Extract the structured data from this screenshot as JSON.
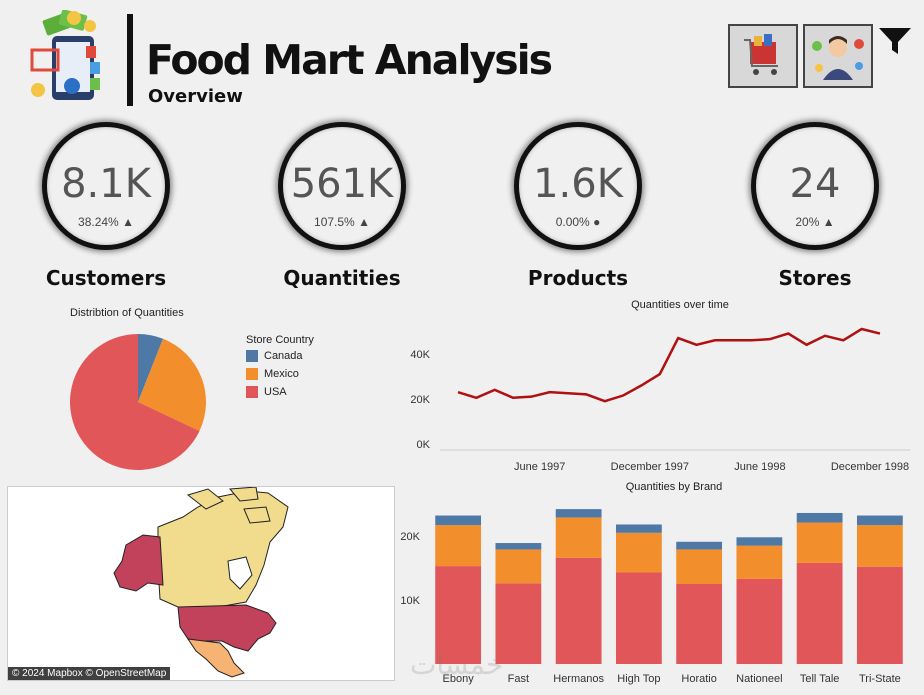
{
  "header": {
    "title": "Food Mart Analysis",
    "subtitle": "Overview"
  },
  "kpis": [
    {
      "value": "8.1K",
      "delta": "38.24%",
      "trend": "▲",
      "label": "Customers"
    },
    {
      "value": "561K",
      "delta": "107.5%",
      "trend": "▲",
      "label": "Quantities"
    },
    {
      "value": "1.6K",
      "delta": "0.00%",
      "trend": "●",
      "label": "Products"
    },
    {
      "value": "24",
      "delta": "20%",
      "trend": "▲",
      "label": "Stores"
    }
  ],
  "colors": {
    "canada": "#4e79a7",
    "mexico": "#f28e2b",
    "usa": "#e15759",
    "line": "#b01010"
  },
  "map": {
    "attribution": "© 2024 Mapbox  © OpenStreetMap"
  },
  "watermark": "خمسات",
  "chart_data": [
    {
      "type": "pie",
      "title": "Distribtion of Quantities",
      "legend_title": "Store Country",
      "categories": [
        "Canada",
        "Mexico",
        "USA"
      ],
      "values": [
        6,
        26,
        68
      ]
    },
    {
      "type": "line",
      "title": "Quantities over time",
      "x": [
        "1997-01",
        "1997-02",
        "1997-03",
        "1997-04",
        "1997-05",
        "1997-06",
        "1997-07",
        "1997-08",
        "1997-09",
        "1997-10",
        "1997-11",
        "1997-12",
        "1998-01",
        "1998-02",
        "1998-03",
        "1998-04",
        "1998-05",
        "1998-06",
        "1998-07",
        "1998-08",
        "1998-09",
        "1998-10",
        "1998-11",
        "1998-12"
      ],
      "values": [
        23000,
        20500,
        24000,
        20500,
        21000,
        23000,
        22500,
        22000,
        19000,
        21500,
        26000,
        31000,
        47000,
        44000,
        46000,
        46000,
        46000,
        46500,
        49000,
        44000,
        48000,
        46000,
        51000,
        49000
      ],
      "ylim": [
        0,
        55000
      ],
      "yticks": [
        "0K",
        "20K",
        "40K"
      ],
      "ytick_values": [
        0,
        20000,
        40000
      ],
      "xticks": [
        "June 1997",
        "December 1997",
        "June 1998",
        "December 1998"
      ],
      "xtick_index": [
        5,
        11,
        17,
        23
      ]
    },
    {
      "type": "bar",
      "title": "Quantities by Brand",
      "categories": [
        "Ebony",
        "Fast",
        "Hermanos",
        "High Top",
        "Horatio",
        "Nationeel",
        "Tell Tale",
        "Tri-State"
      ],
      "series": [
        {
          "name": "USA",
          "values": [
            15300,
            12600,
            16600,
            14300,
            12500,
            13300,
            15800,
            15200
          ]
        },
        {
          "name": "Mexico",
          "values": [
            6400,
            5300,
            6300,
            6200,
            5400,
            5200,
            6300,
            6500
          ]
        },
        {
          "name": "Canada",
          "values": [
            1500,
            1000,
            1300,
            1300,
            1200,
            1300,
            1500,
            1500
          ]
        }
      ],
      "ylim": [
        0,
        25000
      ],
      "yticks": [
        "10K",
        "20K"
      ],
      "ytick_values": [
        10000,
        20000
      ]
    }
  ]
}
